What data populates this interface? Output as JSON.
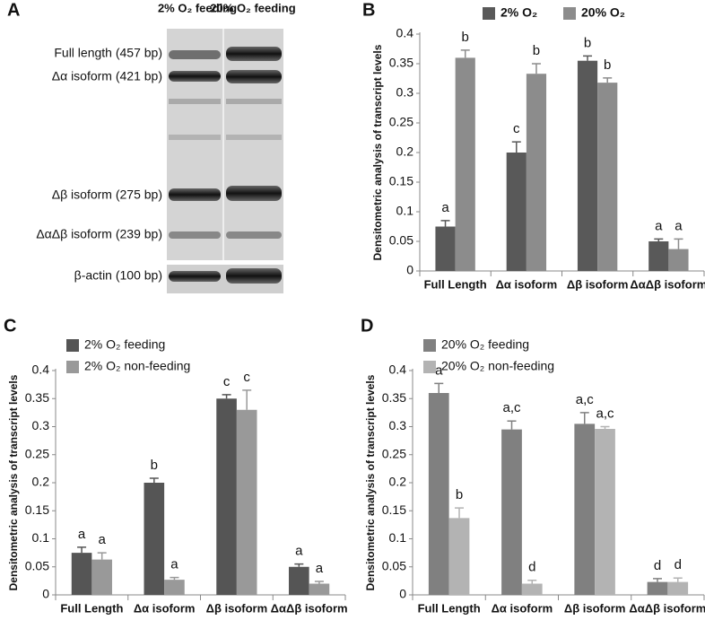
{
  "gel": {
    "panel": "A",
    "lanes": [
      "2% O₂ feeding",
      "20% O₂ feeding"
    ],
    "bands": [
      "Full length (457 bp)",
      "Δα isoform (421 bp)",
      "Δβ isoform (275 bp)",
      "ΔαΔβ isoform (239 bp)",
      "β-actin (100 bp)"
    ]
  },
  "chart_data": [
    {
      "type": "bar",
      "panel": "B",
      "ylabel": "Densitometric analysis of transcript levels",
      "categories": [
        "Full Length",
        "Δα isoform",
        "Δβ isoform",
        "ΔαΔβ isoform"
      ],
      "series": [
        {
          "name": "2% O₂",
          "color": "#595959",
          "values": [
            0.075,
            0.2,
            0.355,
            0.05
          ],
          "errors": [
            0.01,
            0.018,
            0.008,
            0.004
          ],
          "annotations": [
            "a",
            "c",
            "b",
            "a"
          ]
        },
        {
          "name": "20% O₂",
          "color": "#8c8c8c",
          "values": [
            0.36,
            0.333,
            0.318,
            0.037
          ],
          "errors": [
            0.013,
            0.017,
            0.008,
            0.017
          ],
          "annotations": [
            "b",
            "b",
            "b",
            "a"
          ]
        }
      ],
      "ylim": [
        0,
        0.4
      ],
      "yticks": [
        0,
        0.05,
        0.1,
        0.15,
        0.2,
        0.25,
        0.3,
        0.35,
        0.4
      ],
      "legend": "top"
    },
    {
      "type": "bar",
      "panel": "C",
      "ylabel": "Densitometric analysis of transcript levels",
      "categories": [
        "Full Length",
        "Δα isoform",
        "Δβ isoform",
        "ΔαΔβ isoform"
      ],
      "series": [
        {
          "name": "2% O₂ feeding",
          "color": "#555555",
          "values": [
            0.075,
            0.2,
            0.35,
            0.05
          ],
          "errors": [
            0.01,
            0.008,
            0.007,
            0.005
          ],
          "annotations": [
            "a",
            "b",
            "c",
            "a"
          ]
        },
        {
          "name": "2% O₂ non-feeding",
          "color": "#999999",
          "values": [
            0.063,
            0.027,
            0.33,
            0.02
          ],
          "errors": [
            0.012,
            0.004,
            0.035,
            0.004
          ],
          "annotations": [
            "a",
            "a",
            "c",
            "a"
          ]
        }
      ],
      "ylim": [
        0,
        0.4
      ],
      "yticks": [
        0,
        0.05,
        0.1,
        0.15,
        0.2,
        0.25,
        0.3,
        0.35,
        0.4
      ],
      "legend": "upper left"
    },
    {
      "type": "bar",
      "panel": "D",
      "ylabel": "Densitometric analysis of transcript levels",
      "categories": [
        "Full Length",
        "Δα isoform",
        "Δβ isoform",
        "ΔαΔβ isoform"
      ],
      "series": [
        {
          "name": "20% O₂ feeding",
          "color": "#808080",
          "values": [
            0.36,
            0.295,
            0.305,
            0.023
          ],
          "errors": [
            0.017,
            0.015,
            0.02,
            0.006
          ],
          "annotations": [
            "a",
            "a,c",
            "a,c",
            "d"
          ]
        },
        {
          "name": "20% O₂ non-feeding",
          "color": "#b3b3b3",
          "values": [
            0.137,
            0.02,
            0.296,
            0.023
          ],
          "errors": [
            0.018,
            0.006,
            0.004,
            0.007
          ],
          "annotations": [
            "b",
            "d",
            "a,c",
            "d"
          ]
        }
      ],
      "ylim": [
        0,
        0.4
      ],
      "yticks": [
        0,
        0.05,
        0.1,
        0.15,
        0.2,
        0.25,
        0.3,
        0.35,
        0.4
      ],
      "legend": "upper left"
    }
  ]
}
